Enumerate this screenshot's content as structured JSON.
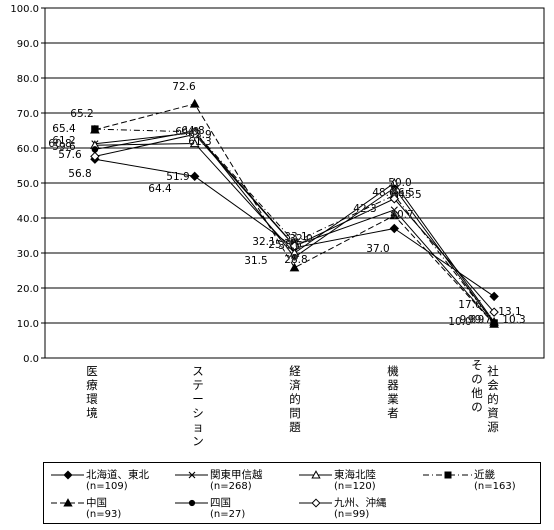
{
  "chart_data": {
    "type": "line",
    "categories": [
      "医療環境",
      "ステーション",
      "経済的問題",
      "機器業者",
      "その他の社会的資源"
    ],
    "category_columns": [
      [
        "医",
        "療",
        "環",
        "境"
      ],
      [
        "ス",
        "テ",
        "ー",
        "シ",
        "ョ",
        "ン"
      ],
      [
        "経",
        "済",
        "的",
        "問",
        "題"
      ],
      [
        "機",
        "器",
        "業",
        "者"
      ],
      [
        "社",
        "会",
        "的",
        "資",
        "源"
      ],
      [
        "そ",
        "の",
        "他",
        "の"
      ]
    ],
    "ylim": [
      0,
      100
    ],
    "yticks": [
      "0.0",
      "10.0",
      "20.0",
      "30.0",
      "40.0",
      "50.0",
      "60.0",
      "70.0",
      "80.0",
      "90.0",
      "100.0"
    ],
    "grid": true,
    "legend_position": "bottom",
    "series": [
      {
        "name": "北海道、東北",
        "n": "(n=109)",
        "values": [
          56.8,
          51.9,
          31.5,
          37.0,
          17.6
        ],
        "color": "#000000",
        "marker": "diamond-filled",
        "dash": "solid"
      },
      {
        "name": "関東甲信越",
        "n": "(n=268)",
        "values": [
          61.2,
          64.4,
          32.1,
          42.3,
          9.8
        ],
        "color": "#000000",
        "marker": "x",
        "dash": "solid"
      },
      {
        "name": "東海北陸",
        "n": "(n=120)",
        "values": [
          60.8,
          61.3,
          30.0,
          50.0,
          10.3
        ],
        "color": "#000000",
        "marker": "triangle-open",
        "dash": "solid"
      },
      {
        "name": "近畿",
        "n": "(n=163)",
        "values": [
          65.4,
          64.6,
          33.1,
          46.5,
          10.0
        ],
        "color": "#000000",
        "marker": "square-filled",
        "dash": "dashdot"
      },
      {
        "name": "中国",
        "n": "(n=93)",
        "values": [
          65.2,
          72.6,
          25.8,
          40.7,
          9.7
        ],
        "color": "#000000",
        "marker": "triangle-filled",
        "dash": "dashed"
      },
      {
        "name": "四国",
        "n": "(n=27)",
        "values": [
          59.6,
          64.8,
          28.8,
          48.6,
          9.9
        ],
        "color": "#000000",
        "marker": "circle-filled",
        "dash": "solid"
      },
      {
        "name": "九州、沖縄",
        "n": "(n=99)",
        "values": [
          57.6,
          63.9,
          32.0,
          45.5,
          13.1
        ],
        "color": "#000000",
        "marker": "diamond-open",
        "dash": "solid"
      }
    ],
    "data_labels": [
      "65.4",
      "65.2",
      "61.2",
      "60.8",
      "59.6",
      "57.6",
      "56.8",
      "72.6",
      "64.4",
      "64.6",
      "64.8",
      "63.9",
      "61.3",
      "51.9",
      "32.1",
      "33.1",
      "31.5",
      "30.0",
      "28.8",
      "32.0",
      "25.8",
      "50.0",
      "48.6",
      "46.5",
      "45.5",
      "42.3",
      "40.7",
      "37.0",
      "17.6",
      "13.1",
      "10.0",
      "9.8",
      "9.9",
      "9.7",
      "10.3"
    ]
  }
}
